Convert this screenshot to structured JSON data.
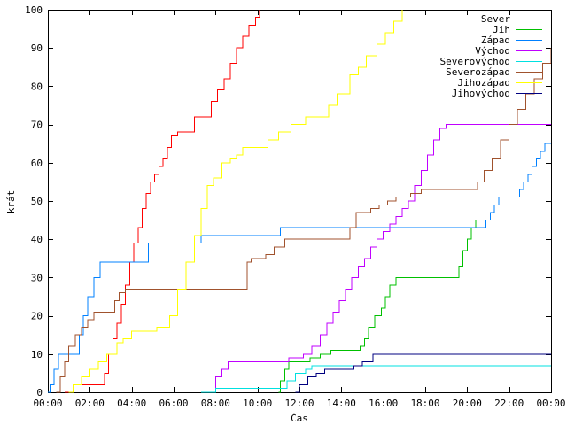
{
  "chart_data": {
    "type": "line",
    "title": "",
    "xlabel": "Čas",
    "ylabel": "krát",
    "xlim": [
      0,
      24
    ],
    "ylim": [
      0,
      100
    ],
    "x_unit": "hours",
    "x_ticks": [
      {
        "value": 0,
        "label": "00:00"
      },
      {
        "value": 2,
        "label": "02:00"
      },
      {
        "value": 4,
        "label": "04:00"
      },
      {
        "value": 6,
        "label": "06:00"
      },
      {
        "value": 8,
        "label": "08:00"
      },
      {
        "value": 10,
        "label": "10:00"
      },
      {
        "value": 12,
        "label": "12:00"
      },
      {
        "value": 14,
        "label": "14:00"
      },
      {
        "value": 16,
        "label": "16:00"
      },
      {
        "value": 18,
        "label": "18:00"
      },
      {
        "value": 20,
        "label": "20:00"
      },
      {
        "value": 22,
        "label": "22:00"
      },
      {
        "value": 24,
        "label": "00:00"
      }
    ],
    "y_ticks": [
      {
        "value": 0,
        "label": "0"
      },
      {
        "value": 10,
        "label": "10"
      },
      {
        "value": 20,
        "label": "20"
      },
      {
        "value": 30,
        "label": "30"
      },
      {
        "value": 40,
        "label": "40"
      },
      {
        "value": 50,
        "label": "50"
      },
      {
        "value": 60,
        "label": "60"
      },
      {
        "value": 70,
        "label": "70"
      },
      {
        "value": 80,
        "label": "80"
      },
      {
        "value": 90,
        "label": "90"
      },
      {
        "value": 100,
        "label": "100"
      }
    ],
    "grid": false,
    "legend_position": "top-right",
    "series": [
      {
        "name": "Sever",
        "color": "#ff0000",
        "x": [
          0.8,
          1.2,
          2.5,
          2.7,
          2.9,
          3.1,
          3.3,
          3.5,
          3.7,
          3.9,
          4.1,
          4.3,
          4.5,
          4.7,
          4.9,
          5.1,
          5.3,
          5.5,
          5.7,
          5.9,
          6.2,
          6.5,
          7.0,
          7.3,
          7.8,
          8.1,
          8.4,
          8.7,
          9.0,
          9.3,
          9.6,
          9.9,
          10.1
        ],
        "y": [
          0,
          2,
          2,
          5,
          10,
          14,
          18,
          23,
          28,
          34,
          39,
          43,
          48,
          52,
          55,
          57,
          59,
          61,
          64,
          67,
          68,
          68,
          72,
          72,
          76,
          79,
          82,
          86,
          90,
          93,
          96,
          98,
          100
        ]
      },
      {
        "name": "Jih",
        "color": "#00c000",
        "x": [
          11.0,
          11.1,
          11.3,
          11.5,
          12.5,
          13.0,
          13.5,
          14.0,
          14.5,
          14.9,
          15.1,
          15.3,
          15.6,
          15.9,
          16.1,
          16.3,
          16.6,
          19.5,
          19.6,
          19.8,
          20.0,
          20.2,
          20.4,
          24.0
        ],
        "y": [
          0,
          3,
          6,
          8,
          9,
          10,
          11,
          11,
          11,
          12,
          14,
          17,
          20,
          22,
          25,
          28,
          30,
          30,
          33,
          37,
          40,
          43,
          45,
          45
        ]
      },
      {
        "name": "Západ",
        "color": "#0080ff",
        "x": [
          0.0,
          0.15,
          0.3,
          0.5,
          1.3,
          1.5,
          1.7,
          1.9,
          2.2,
          2.5,
          4.6,
          4.8,
          7.1,
          7.3,
          10.9,
          11.1,
          20.7,
          20.9,
          21.1,
          21.3,
          21.5,
          22.3,
          22.5,
          22.7,
          22.9,
          23.1,
          23.3,
          23.5,
          23.7,
          24.0
        ],
        "y": [
          0,
          2,
          6,
          10,
          10,
          15,
          20,
          25,
          30,
          34,
          34,
          39,
          39,
          41,
          41,
          43,
          43,
          45,
          47,
          49,
          51,
          51,
          53,
          55,
          57,
          59,
          61,
          63,
          65,
          65
        ]
      },
      {
        "name": "Východ",
        "color": "#c000ff",
        "x": [
          7.7,
          8.0,
          8.3,
          8.6,
          11.5,
          12.2,
          12.6,
          13.0,
          13.3,
          13.6,
          13.9,
          14.2,
          14.5,
          14.8,
          15.1,
          15.4,
          15.7,
          16.0,
          16.3,
          16.6,
          16.9,
          17.2,
          17.5,
          17.8,
          18.1,
          18.4,
          18.7,
          19.0,
          24.0
        ],
        "y": [
          0,
          4,
          6,
          8,
          9,
          10,
          12,
          15,
          18,
          21,
          24,
          27,
          30,
          33,
          35,
          38,
          40,
          42,
          44,
          46,
          48,
          50,
          54,
          58,
          62,
          66,
          69,
          70,
          70
        ]
      },
      {
        "name": "Severovýchod",
        "color": "#00e0e0",
        "x": [
          7.3,
          8.0,
          10.9,
          11.4,
          11.8,
          12.3,
          12.6,
          13.8,
          15.2,
          15.5,
          15.9,
          24.0
        ],
        "y": [
          0,
          1,
          1,
          3,
          5,
          6,
          7,
          7,
          7,
          7,
          7,
          7
        ]
      },
      {
        "name": "Severozápad",
        "color": "#a0522d",
        "x": [
          0.4,
          0.6,
          0.8,
          1.0,
          1.3,
          1.6,
          1.9,
          2.2,
          2.5,
          3.0,
          3.2,
          3.4,
          3.7,
          5.4,
          5.6,
          6.5,
          9.5,
          9.7,
          10.4,
          10.8,
          11.3,
          14.4,
          14.7,
          15.4,
          15.8,
          16.2,
          16.6,
          17.3,
          17.8,
          20.5,
          20.8,
          21.2,
          21.6,
          22.0,
          22.4,
          22.8,
          23.2,
          23.6,
          24.0
        ],
        "y": [
          0,
          4,
          8,
          12,
          15,
          17,
          19,
          21,
          21,
          21,
          24,
          26,
          27,
          27,
          27,
          27,
          34,
          35,
          36,
          38,
          40,
          43,
          47,
          48,
          49,
          50,
          51,
          52,
          53,
          55,
          58,
          61,
          66,
          70,
          74,
          78,
          82,
          86,
          90
        ]
      },
      {
        "name": "Jihozápad",
        "color": "#ffff00",
        "x": [
          1.0,
          1.2,
          1.6,
          2.0,
          2.4,
          2.8,
          3.3,
          3.6,
          4.0,
          4.4,
          5.2,
          5.8,
          6.2,
          6.6,
          7.0,
          7.3,
          7.6,
          7.9,
          8.3,
          8.7,
          9.0,
          9.3,
          9.8,
          10.5,
          11.0,
          11.6,
          12.3,
          12.8,
          13.4,
          13.8,
          14.4,
          14.8,
          15.2,
          15.7,
          16.1,
          16.5,
          16.9
        ],
        "y": [
          0,
          2,
          4,
          6,
          8,
          10,
          13,
          14,
          16,
          16,
          17,
          20,
          27,
          34,
          41,
          48,
          54,
          56,
          60,
          61,
          62,
          64,
          64,
          66,
          68,
          70,
          72,
          72,
          75,
          78,
          83,
          85,
          88,
          91,
          94,
          97,
          100
        ]
      },
      {
        "name": "Jihovýchod",
        "color": "#000080",
        "x": [
          11.8,
          12.0,
          12.4,
          12.8,
          13.2,
          14.6,
          15.0,
          15.5,
          24.0
        ],
        "y": [
          0,
          2,
          4,
          5,
          6,
          7,
          8,
          10,
          10
        ]
      }
    ]
  }
}
